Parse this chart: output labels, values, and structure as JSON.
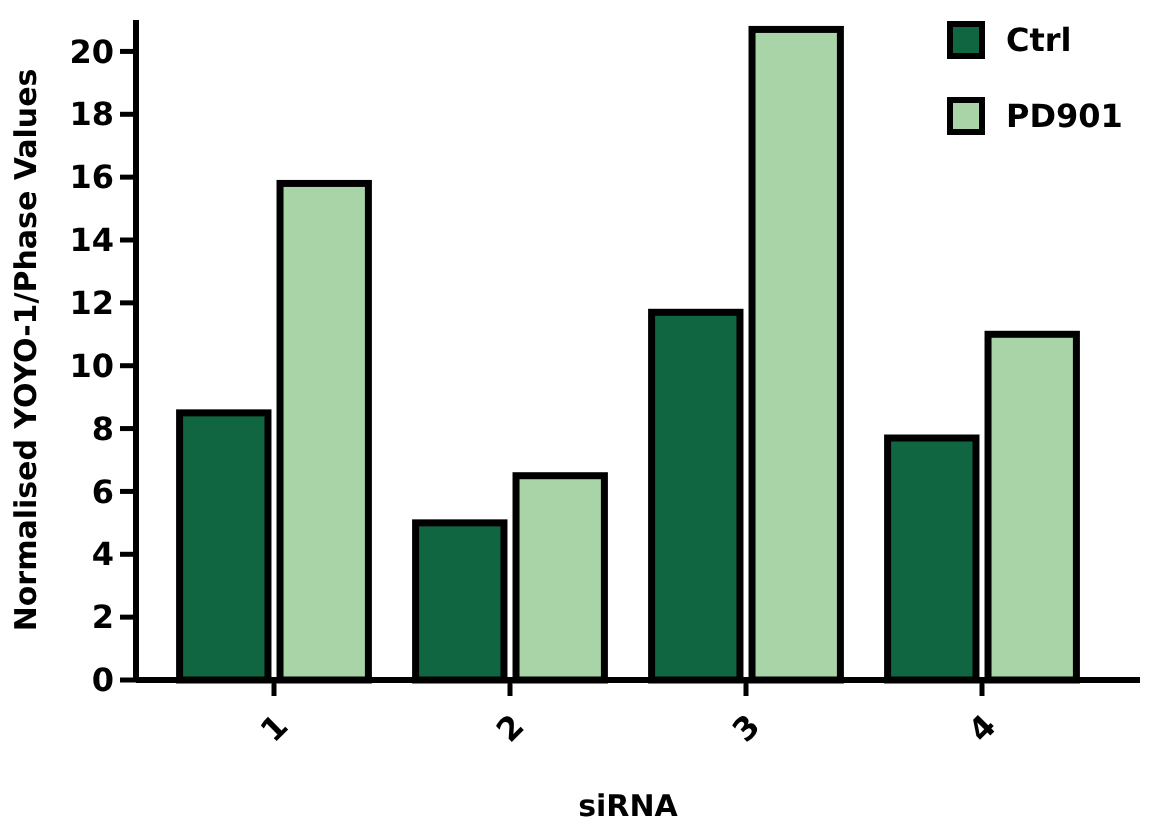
{
  "chart_data": {
    "type": "bar",
    "xlabel": "siRNA",
    "ylabel": "Normalised YOYO-1/Phase Values",
    "categories": [
      "1",
      "2",
      "3",
      "4"
    ],
    "series": [
      {
        "name": "Ctrl",
        "color": "#106640",
        "values": [
          8.5,
          5.0,
          11.7,
          7.7
        ]
      },
      {
        "name": "PD901",
        "color": "#a9d4a8",
        "values": [
          15.8,
          6.5,
          20.7,
          11.0
        ]
      }
    ],
    "ylim": [
      0,
      21
    ],
    "yticks": [
      0,
      2,
      4,
      6,
      8,
      10,
      12,
      14,
      16,
      18,
      20
    ],
    "grid": false,
    "legend": "top right"
  }
}
